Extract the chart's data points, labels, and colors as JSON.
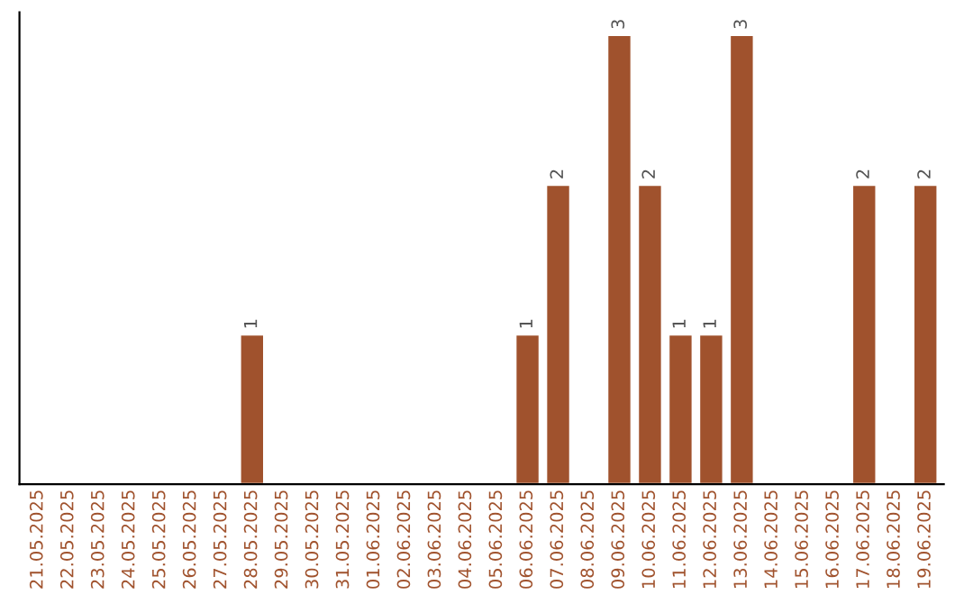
{
  "chart_data": {
    "type": "bar",
    "categories": [
      "21.05.2025",
      "22.05.2025",
      "23.05.2025",
      "24.05.2025",
      "25.05.2025",
      "26.05.2025",
      "27.05.2025",
      "28.05.2025",
      "29.05.2025",
      "30.05.2025",
      "31.05.2025",
      "01.06.2025",
      "02.06.2025",
      "03.06.2025",
      "04.06.2025",
      "05.06.2025",
      "06.06.2025",
      "07.06.2025",
      "08.06.2025",
      "09.06.2025",
      "10.06.2025",
      "11.06.2025",
      "12.06.2025",
      "13.06.2025",
      "14.06.2025",
      "15.06.2025",
      "16.06.2025",
      "17.06.2025",
      "18.06.2025",
      "19.06.2025"
    ],
    "values": [
      0,
      0,
      0,
      0,
      0,
      0,
      0,
      1,
      0,
      0,
      0,
      0,
      0,
      0,
      0,
      0,
      1,
      2,
      0,
      3,
      2,
      1,
      1,
      3,
      0,
      0,
      0,
      2,
      0,
      2
    ],
    "color": "#a0522d",
    "value_labels": [
      null,
      null,
      null,
      null,
      null,
      null,
      null,
      "1",
      null,
      null,
      null,
      null,
      null,
      null,
      null,
      null,
      "1",
      "2",
      null,
      "3",
      "2",
      "1",
      "1",
      "3",
      null,
      null,
      null,
      "2",
      null,
      "2"
    ],
    "tick_labels": "x",
    "grid": false
  }
}
